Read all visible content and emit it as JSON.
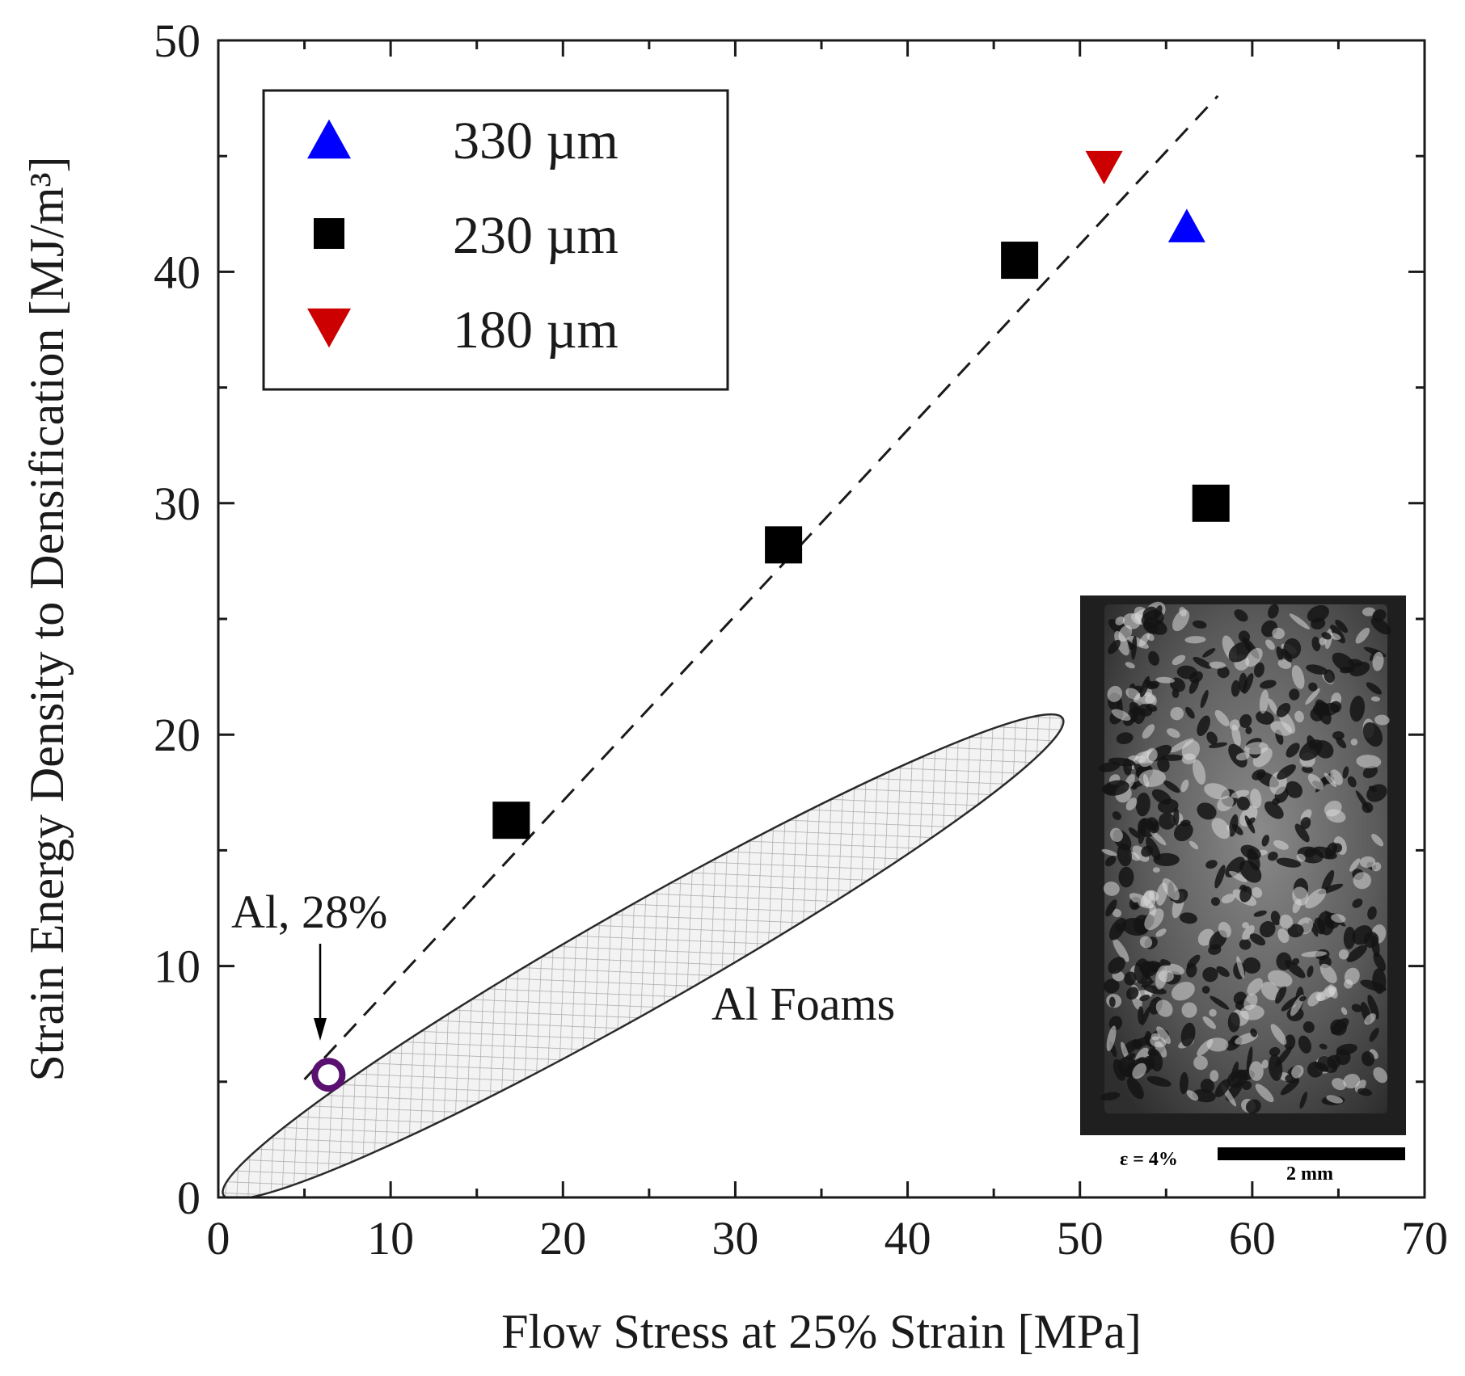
{
  "chart_data": {
    "type": "scatter",
    "xlabel": "Flow Stress at 25% Strain [MPa]",
    "ylabel": "Strain Energy Density to Densification [MJ/m³]",
    "xlim": [
      0,
      70
    ],
    "ylim": [
      0,
      50
    ],
    "x_ticks": [
      "0",
      "10",
      "20",
      "30",
      "40",
      "50",
      "60",
      "70"
    ],
    "y_ticks": [
      "0",
      "10",
      "20",
      "30",
      "40",
      "50"
    ],
    "legend_position": "top-left",
    "series": [
      {
        "name": "330 µm",
        "marker": "triangle-up",
        "color": "#0000ff",
        "points": [
          {
            "x": 56.2,
            "y": 42.0
          }
        ]
      },
      {
        "name": "230 µm",
        "marker": "square",
        "color": "#000000",
        "points": [
          {
            "x": 17.0,
            "y": 16.3
          },
          {
            "x": 32.8,
            "y": 28.2
          },
          {
            "x": 46.5,
            "y": 40.5
          },
          {
            "x": 57.6,
            "y": 30.0
          }
        ]
      },
      {
        "name": "180 µm",
        "marker": "triangle-down",
        "color": "#cc0000",
        "points": [
          {
            "x": 51.4,
            "y": 44.5
          }
        ]
      }
    ],
    "reference_point": {
      "label": "Al, 28%",
      "x": 6.4,
      "y": 5.3,
      "color": "#5a1070",
      "marker": "open-circle"
    },
    "trend_line": {
      "style": "dashed",
      "from": {
        "x": 5.0,
        "y": 5.1
      },
      "to": {
        "x": 58.0,
        "y": 47.6
      }
    },
    "region": {
      "label": "Al Foams",
      "shape": "ellipse",
      "from": {
        "x": 0.3,
        "y": 0.1
      },
      "to": {
        "x": 49.0,
        "y": 20.7
      },
      "half_width_y": 2.2,
      "fill": "crosshatch"
    },
    "inset": {
      "caption_left": "ε = 4%",
      "caption_right": "2 mm"
    }
  }
}
